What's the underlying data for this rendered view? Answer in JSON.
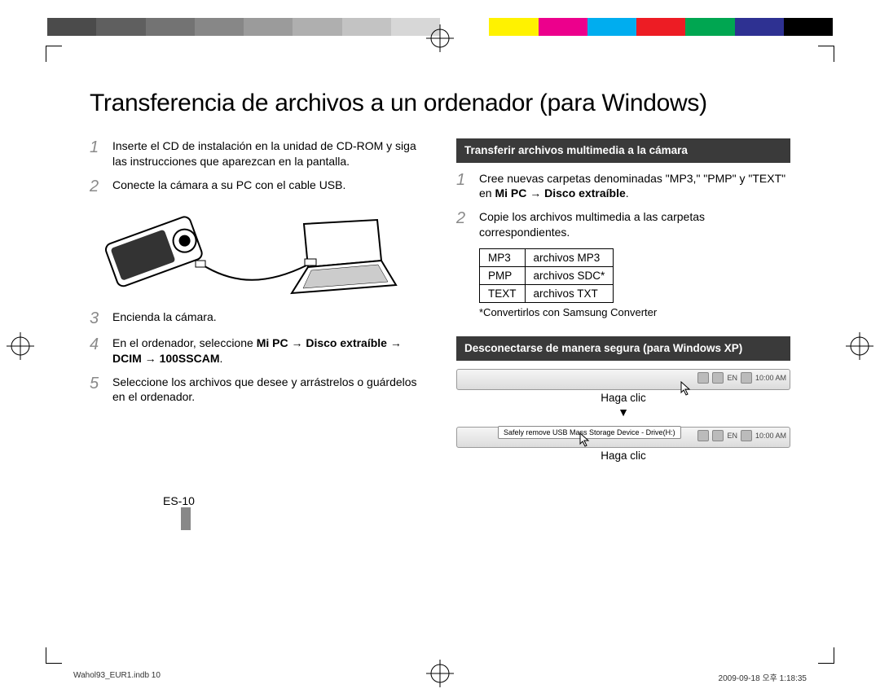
{
  "color_bar": [
    "#4b4b4b",
    "#5f5f5f",
    "#737373",
    "#878787",
    "#9b9b9b",
    "#afafaf",
    "#c3c3c3",
    "#d7d7d7",
    "#ffffff",
    "#fff200",
    "#ec008c",
    "#00adef",
    "#ed1c24",
    "#00a651",
    "#2e3192",
    "#000000"
  ],
  "title": "Transferencia de archivos a un ordenador (para Windows)",
  "left_steps": [
    {
      "n": "1",
      "body": "Inserte el CD de instalación en la unidad de CD-ROM y siga las instrucciones que aparezcan en la pantalla."
    },
    {
      "n": "2",
      "body": "Conecte la cámara a su PC con el cable USB."
    },
    {
      "n": "3",
      "body": "Encienda la cámara."
    },
    {
      "n": "4",
      "body": "En el ordenador, seleccione <b>Mi PC</b> → <b>Disco extraíble</b> → <b>DCIM</b> → <b>100SSCAM</b>."
    },
    {
      "n": "5",
      "body": "Seleccione los archivos que desee y arrástrelos o guárdelos en el ordenador."
    }
  ],
  "right": {
    "head1": "Transferir archivos multimedia a la cámara",
    "steps": [
      {
        "n": "1",
        "body": "Cree nuevas carpetas denominadas \"MP3,\" \"PMP\" y \"TEXT\" en <b>Mi PC</b> → <b>Disco extraíble</b>."
      },
      {
        "n": "2",
        "body": "Copie los archivos multimedia a las carpetas correspondientes."
      }
    ],
    "table": {
      "rows": [
        [
          "MP3",
          "archivos MP3"
        ],
        [
          "PMP",
          "archivos SDC*"
        ],
        [
          "TEXT",
          "archivos TXT"
        ]
      ]
    },
    "note": "*Convertirlos con Samsung Converter",
    "head2": "Desconectarse de manera segura (para Windows XP)",
    "caption": "Haga clic",
    "balloon": "Safely remove USB Mass Storage Device - Drive(H:)",
    "tb_lang": "EN",
    "tb_time": "10:00 AM"
  },
  "page_num": "ES-10",
  "footer_left": "Wahol93_EUR1.indb   10",
  "footer_right": "2009-09-18   오후 1:18:35"
}
